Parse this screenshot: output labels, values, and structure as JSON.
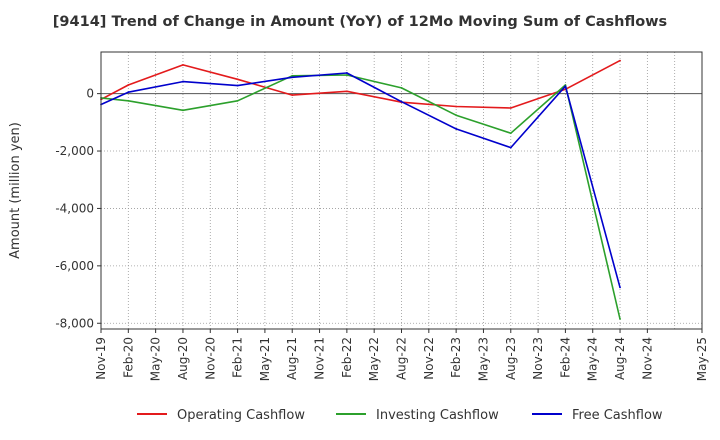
{
  "chart_data": {
    "type": "line",
    "title": "[9414]  Trend of Change in Amount (YoY) of 12Mo Moving Sum of Cashflows",
    "xlabel": "",
    "ylabel": "Amount (million yen)",
    "ylim": [
      -8200,
      1450
    ],
    "yticks": [
      0,
      -2000,
      -4000,
      -6000,
      -8000
    ],
    "ytick_labels": [
      "0",
      "-2,000",
      "-4,000",
      "-6,000",
      "-8,000"
    ],
    "x_range": [
      0,
      66
    ],
    "x_tick_step": 3,
    "x_tick_labels": [
      "Nov-19",
      "Feb-20",
      "May-20",
      "Aug-20",
      "Nov-20",
      "Feb-21",
      "May-21",
      "Aug-21",
      "Nov-21",
      "Feb-22",
      "May-22",
      "Aug-22",
      "Nov-22",
      "Feb-23",
      "May-23",
      "Aug-23",
      "Nov-23",
      "Feb-24",
      "May-24",
      "Aug-24",
      "Nov-24",
      "May-25"
    ],
    "x_tick_positions": [
      0,
      3,
      6,
      9,
      12,
      15,
      18,
      21,
      24,
      27,
      30,
      33,
      36,
      39,
      42,
      45,
      48,
      51,
      54,
      57,
      60,
      66
    ],
    "grid": true,
    "legend_position": "bottom",
    "series": [
      {
        "name": "Operating Cashflow",
        "color": "#e31a1c",
        "x": [
          0,
          3,
          9,
          15,
          21,
          27,
          33,
          39,
          45,
          51,
          57
        ],
        "values": [
          -200,
          300,
          1000,
          500,
          -50,
          80,
          -300,
          -450,
          -500,
          150,
          1150
        ]
      },
      {
        "name": "Investing Cashflow",
        "color": "#2ca02c",
        "x": [
          0,
          3,
          9,
          15,
          21,
          27,
          33,
          39,
          45,
          51,
          57
        ],
        "values": [
          -150,
          -250,
          -580,
          -250,
          620,
          650,
          200,
          -750,
          -1380,
          300,
          -7850
        ]
      },
      {
        "name": "Free Cashflow",
        "color": "#0000cc",
        "x": [
          0,
          3,
          9,
          15,
          21,
          27,
          33,
          39,
          45,
          51,
          57
        ],
        "values": [
          -380,
          50,
          420,
          280,
          570,
          720,
          -280,
          -1230,
          -1880,
          260,
          -6750
        ]
      }
    ]
  }
}
